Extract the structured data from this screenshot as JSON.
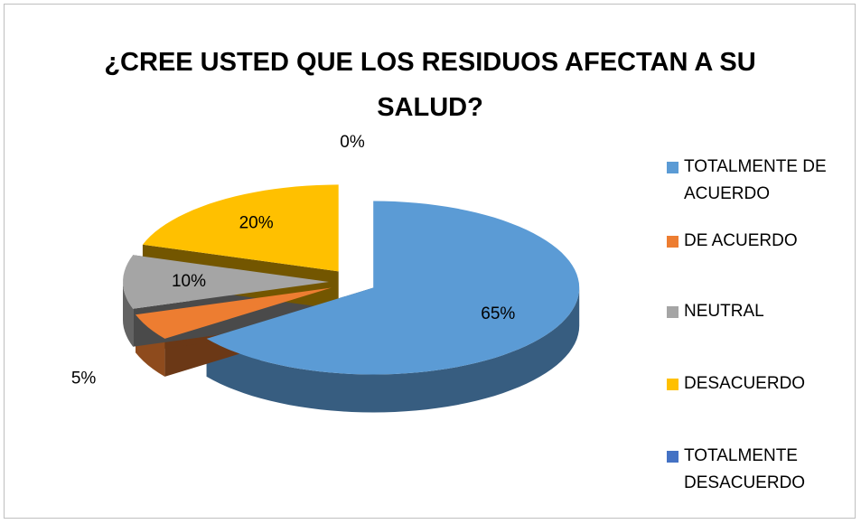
{
  "chart_data": {
    "type": "pie3d",
    "title": "¿CREE USTED QUE LOS RESIDUOS AFECTAN A SU SALUD?",
    "categories": [
      "TOTALMENTE DE ACUERDO",
      "DE ACUERDO",
      "NEUTRAL",
      "DESACUERDO",
      "TOTALMENTE DESACUERDO"
    ],
    "values": [
      65,
      5,
      10,
      20,
      0
    ],
    "value_labels": [
      "65%",
      "5%",
      "10%",
      "20%",
      "0%"
    ],
    "colors": [
      "#5b9bd5",
      "#ed7d31",
      "#a5a5a5",
      "#ffc000",
      "#4472c4"
    ],
    "legend": "right"
  }
}
